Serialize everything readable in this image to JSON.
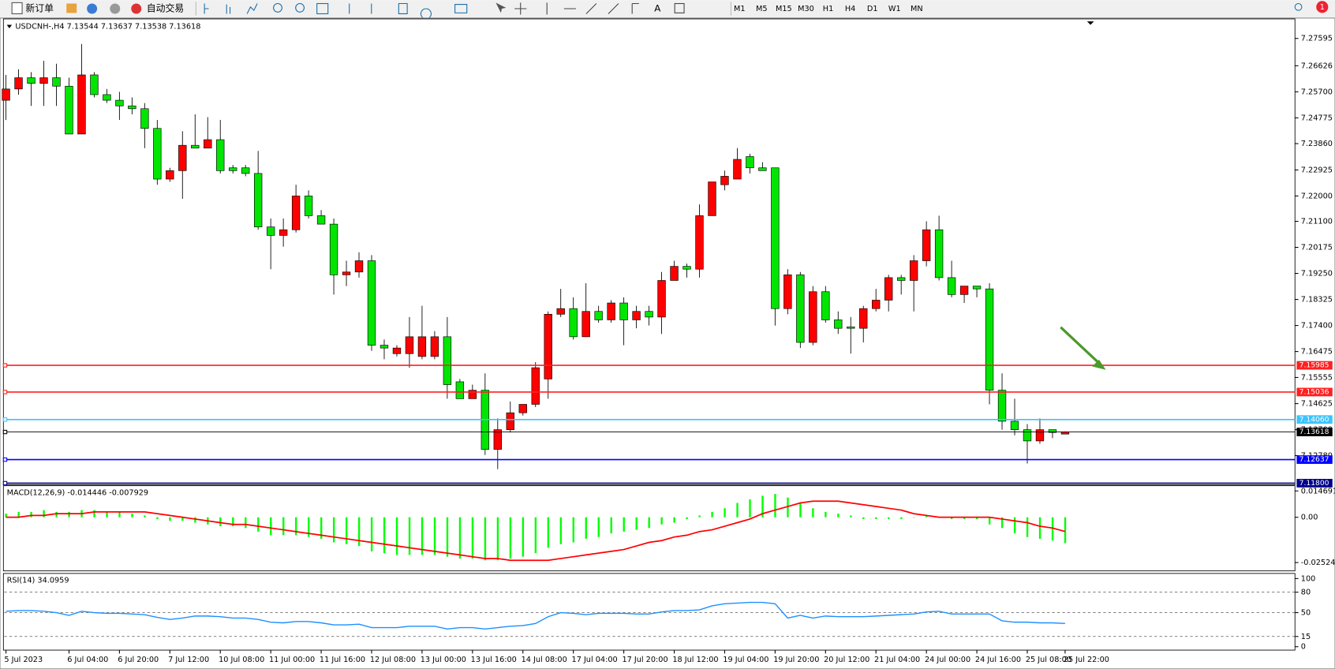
{
  "toolbar": {
    "buttons": [
      "新订单",
      "自动交易"
    ],
    "timeframes": [
      "M1",
      "M5",
      "M15",
      "M30",
      "H1",
      "H4",
      "D1",
      "W1",
      "MN"
    ],
    "badge": "1"
  },
  "chart_data": [
    {
      "type": "candlestick",
      "title": "USDCNH-,H4  7.13544 7.13637 7.13538 7.13618",
      "up_color": "#ff0000",
      "down_color": "#00e600",
      "categories": [
        "5 Jul 2023",
        null,
        null,
        null,
        null,
        "6 Jul 04:00",
        null,
        null,
        null,
        "6 Jul 20:00",
        null,
        null,
        null,
        "7 Jul 12:00",
        null,
        null,
        null,
        "10 Jul 08:00",
        null,
        null,
        null,
        "11 Jul 00:00",
        null,
        null,
        null,
        "11 Jul 16:00",
        null,
        null,
        null,
        "12 Jul 08:00",
        null,
        null,
        null,
        "13 Jul 00:00",
        null,
        null,
        null,
        "13 Jul 16:00",
        null,
        null,
        null,
        "14 Jul 08:00",
        null,
        null,
        null,
        "17 Jul 04:00",
        null,
        null,
        null,
        "17 Jul 20:00",
        null,
        null,
        null,
        "18 Jul 12:00",
        null,
        null,
        null,
        "19 Jul 04:00",
        null,
        null,
        null,
        "19 Jul 20:00",
        null,
        null,
        null,
        "20 Jul 12:00",
        null,
        null,
        null,
        "21 Jul 04:00",
        null,
        null,
        null,
        "24 Jul 00:00",
        null,
        null,
        null,
        "24 Jul 16:00",
        null,
        null,
        null,
        "25 Jul 08:00",
        null,
        null,
        "25 Jul 22:00"
      ],
      "open": [
        7.254,
        7.258,
        7.262,
        7.26,
        7.262,
        7.259,
        7.242,
        7.263,
        7.256,
        7.254,
        7.252,
        7.251,
        7.244,
        7.226,
        7.229,
        7.238,
        7.237,
        7.24,
        7.23,
        7.23,
        7.228,
        7.209,
        7.206,
        7.208,
        7.22,
        7.213,
        7.21,
        7.192,
        7.193,
        7.197,
        7.167,
        7.164,
        7.164,
        7.163,
        7.163,
        7.17,
        7.154,
        7.148,
        7.151,
        7.13,
        7.137,
        7.143,
        7.146,
        7.155,
        7.178,
        7.18,
        7.17,
        7.179,
        7.176,
        7.182,
        7.176,
        7.179,
        7.177,
        7.19,
        7.195,
        7.194,
        7.213,
        7.224,
        7.226,
        7.234,
        7.23,
        7.23,
        7.18,
        7.192,
        7.168,
        7.186,
        7.176,
        7.1735,
        7.173,
        7.18,
        7.183,
        7.191,
        7.19,
        7.197,
        7.208,
        7.191,
        7.185,
        7.188,
        7.187,
        7.151,
        7.14,
        7.137,
        7.133,
        7.137,
        7.13544
      ],
      "high": [
        7.263,
        7.265,
        7.264,
        7.268,
        7.267,
        7.262,
        7.274,
        7.264,
        7.258,
        7.257,
        7.255,
        7.253,
        7.247,
        7.23,
        7.243,
        7.249,
        7.248,
        7.247,
        7.231,
        7.231,
        7.236,
        7.212,
        7.212,
        7.224,
        7.222,
        7.215,
        7.212,
        7.197,
        7.2,
        7.199,
        7.169,
        7.167,
        7.177,
        7.181,
        7.172,
        7.177,
        7.155,
        7.153,
        7.157,
        7.141,
        7.147,
        7.146,
        7.161,
        7.179,
        7.187,
        7.184,
        7.189,
        7.181,
        7.183,
        7.184,
        7.181,
        7.181,
        7.193,
        7.197,
        7.196,
        7.217,
        7.225,
        7.229,
        7.237,
        7.235,
        7.232,
        7.23,
        7.194,
        7.193,
        7.188,
        7.188,
        7.179,
        7.177,
        7.181,
        7.187,
        7.192,
        7.192,
        7.199,
        7.211,
        7.213,
        7.197,
        7.188,
        7.188,
        7.189,
        7.157,
        7.148,
        7.139,
        7.141,
        7.137,
        7.13637
      ],
      "low": [
        7.247,
        7.256,
        7.252,
        7.252,
        7.252,
        7.242,
        7.242,
        7.255,
        7.253,
        7.247,
        7.249,
        7.237,
        7.224,
        7.225,
        7.219,
        7.237,
        7.237,
        7.228,
        7.228,
        7.227,
        7.208,
        7.194,
        7.202,
        7.207,
        7.212,
        7.21,
        7.185,
        7.188,
        7.191,
        7.165,
        7.162,
        7.163,
        7.159,
        7.162,
        7.162,
        7.148,
        7.148,
        7.148,
        7.128,
        7.123,
        7.136,
        7.142,
        7.145,
        7.148,
        7.177,
        7.169,
        7.17,
        7.175,
        7.175,
        7.167,
        7.173,
        7.174,
        7.171,
        7.19,
        7.191,
        7.191,
        7.213,
        7.222,
        7.226,
        7.228,
        7.229,
        7.174,
        7.178,
        7.166,
        7.167,
        7.175,
        7.171,
        7.164,
        7.168,
        7.179,
        7.179,
        7.185,
        7.179,
        7.195,
        7.19,
        7.184,
        7.182,
        7.184,
        7.146,
        7.137,
        7.135,
        7.125,
        7.132,
        7.134,
        7.13538
      ],
      "close": [
        7.258,
        7.262,
        7.26,
        7.262,
        7.259,
        7.242,
        7.263,
        7.256,
        7.254,
        7.252,
        7.251,
        7.244,
        7.226,
        7.229,
        7.238,
        7.237,
        7.24,
        7.229,
        7.229,
        7.228,
        7.209,
        7.206,
        7.208,
        7.22,
        7.213,
        7.21,
        7.192,
        7.193,
        7.197,
        7.167,
        7.166,
        7.166,
        7.17,
        7.17,
        7.17,
        7.153,
        7.148,
        7.151,
        7.13,
        7.137,
        7.143,
        7.146,
        7.159,
        7.178,
        7.18,
        7.17,
        7.179,
        7.176,
        7.182,
        7.176,
        7.179,
        7.177,
        7.19,
        7.195,
        7.194,
        7.213,
        7.225,
        7.227,
        7.233,
        7.23,
        7.229,
        7.18,
        7.192,
        7.168,
        7.186,
        7.176,
        7.173,
        7.173,
        7.18,
        7.183,
        7.191,
        7.19,
        7.197,
        7.208,
        7.191,
        7.185,
        7.188,
        7.187,
        7.151,
        7.14,
        7.137,
        7.133,
        7.137,
        7.136,
        7.13618
      ],
      "ylim": [
        7.1174,
        7.2829
      ],
      "yticks": [
        7.27595,
        7.26626,
        {
          "value": 7.257,
          "label": "7.25700"
        },
        7.24775,
        {
          "value": 7.2386,
          "label": "7.23860"
        },
        7.22925,
        {
          "value": 7.22,
          "label": "7.22000"
        },
        {
          "value": 7.211,
          "label": "7.21100"
        },
        7.20175,
        {
          "value": 7.1925,
          "label": "7.19250"
        },
        7.18325,
        {
          "value": 7.174,
          "label": "7.17400"
        },
        7.16475,
        7.15555,
        7.14625,
        {
          "value": 7.137,
          "label": "7.13700"
        },
        {
          "value": 7.1278,
          "label": "7.12780"
        }
      ],
      "levels": {
        "values": [
          7.15985,
          7.15036,
          7.1406,
          7.13618,
          7.12637,
          7.118
        ],
        "value_labels": [
          "7.15985",
          "7.15036",
          "7.14060",
          "7.13618",
          "7.12637",
          "7.11800"
        ],
        "colors": [
          "#ff2020",
          "#ff2020",
          "#3cc3ff",
          "#000000",
          "#0000ff",
          "#00008b"
        ]
      }
    },
    {
      "type": "macd",
      "title": "MACD(12,26,9) -0.014446 -0.007929",
      "ylim": [
        -0.0299,
        0.0176
      ],
      "yticks": [
        {
          "value": 0.014691,
          "label": "0.014691"
        },
        {
          "value": 0,
          "label": "0.00"
        },
        {
          "value": -0.02524,
          "label": "-0.02524"
        }
      ],
      "series": [
        {
          "name": "MACD",
          "color": "#00ff00",
          "values": [
            0.002,
            0.003,
            0.003,
            0.004,
            0.003,
            0.003,
            0.004,
            0.004,
            0.003,
            0.003,
            0.002,
            0.001,
            -0.001,
            -0.002,
            -0.002,
            -0.003,
            -0.004,
            -0.005,
            -0.005,
            -0.006,
            -0.008,
            -0.01,
            -0.01,
            -0.01,
            -0.011,
            -0.012,
            -0.014,
            -0.015,
            -0.016,
            -0.019,
            -0.02,
            -0.021,
            -0.021,
            -0.021,
            -0.021,
            -0.022,
            -0.023,
            -0.023,
            -0.024,
            -0.024,
            -0.023,
            -0.022,
            -0.02,
            -0.017,
            -0.015,
            -0.014,
            -0.012,
            -0.011,
            -0.009,
            -0.008,
            -0.007,
            -0.006,
            -0.004,
            -0.003,
            -0.001,
            0.001,
            0.003,
            0.005,
            0.008,
            0.01,
            0.012,
            0.013,
            0.011,
            0.008,
            0.005,
            0.003,
            0.002,
            0.001,
            -0.001,
            -0.001,
            -0.001,
            -0.001,
            0.0,
            0.001,
            0.0,
            -0.001,
            -0.001,
            -0.001,
            -0.004,
            -0.006,
            -0.009,
            -0.011,
            -0.012,
            -0.013,
            -0.014446
          ]
        },
        {
          "name": "Signal",
          "color": "#ff0000",
          "values": [
            0.0,
            0.0,
            0.001,
            0.001,
            0.002,
            0.002,
            0.002,
            0.003,
            0.003,
            0.003,
            0.003,
            0.003,
            0.002,
            0.001,
            0.0,
            -0.001,
            -0.002,
            -0.003,
            -0.004,
            -0.004,
            -0.005,
            -0.006,
            -0.007,
            -0.008,
            -0.009,
            -0.01,
            -0.011,
            -0.012,
            -0.013,
            -0.014,
            -0.015,
            -0.016,
            -0.017,
            -0.018,
            -0.019,
            -0.02,
            -0.021,
            -0.022,
            -0.023,
            -0.023,
            -0.024,
            -0.024,
            -0.024,
            -0.024,
            -0.023,
            -0.022,
            -0.021,
            -0.02,
            -0.019,
            -0.018,
            -0.016,
            -0.014,
            -0.013,
            -0.011,
            -0.01,
            -0.008,
            -0.007,
            -0.005,
            -0.003,
            -0.001,
            0.002,
            0.004,
            0.006,
            0.008,
            0.009,
            0.009,
            0.009,
            0.008,
            0.007,
            0.006,
            0.005,
            0.004,
            0.002,
            0.001,
            0.0,
            0.0,
            0.0,
            0.0,
            0.0,
            -0.001,
            -0.002,
            -0.003,
            -0.005,
            -0.006,
            -0.007929
          ]
        }
      ]
    },
    {
      "type": "line",
      "title": "RSI(14) 34.0959",
      "color": "#1e90ff",
      "ylim": [
        0,
        100
      ],
      "yticks": [
        0,
        15,
        50,
        80,
        100
      ],
      "grid": "dashed",
      "values": [
        52,
        53,
        53,
        52,
        50,
        46,
        52,
        50,
        49,
        49,
        48,
        47,
        43,
        40,
        42,
        45,
        45,
        44,
        42,
        42,
        40,
        36,
        35,
        37,
        37,
        35,
        32,
        32,
        33,
        28,
        28,
        28,
        30,
        30,
        30,
        26,
        28,
        28,
        26,
        28,
        30,
        31,
        34,
        44,
        50,
        49,
        47,
        49,
        49,
        49,
        48,
        48,
        51,
        53,
        53,
        54,
        60,
        63,
        64,
        65,
        65,
        63,
        42,
        46,
        42,
        45,
        44,
        44,
        44,
        45,
        46,
        47,
        48,
        51,
        52,
        48,
        48,
        48,
        48,
        38,
        36,
        36,
        35,
        35,
        34.0959
      ]
    }
  ]
}
